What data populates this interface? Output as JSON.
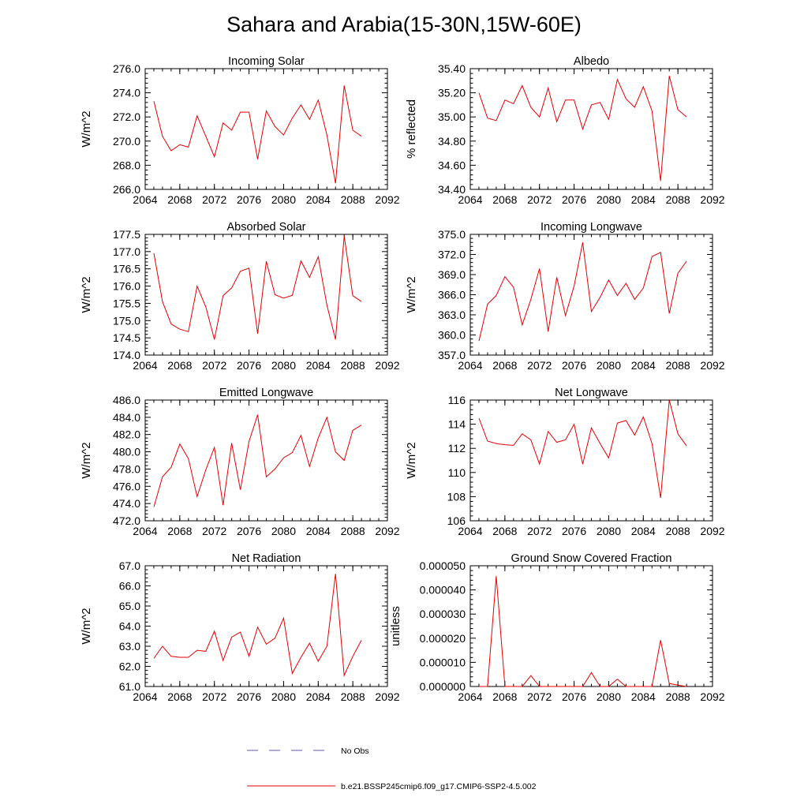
{
  "figure": {
    "title": "Sahara and Arabia(15-30N,15W-60E)"
  },
  "legend": {
    "items": [
      {
        "label": "No Obs",
        "color": "#5a5aa0",
        "style": "dashed"
      },
      {
        "label": "b.e21.BSSP245cmip6.f09_g17.CMIP6-SSP2-4.5.002",
        "color": "#e60000",
        "style": "solid"
      }
    ]
  },
  "chart_data": [
    {
      "type": "line",
      "title": "Incoming Solar",
      "ylabel": "W/m^2",
      "xlim": [
        2064,
        2092
      ],
      "ylim": [
        266,
        276
      ],
      "x_ticks": [
        2064,
        2068,
        2072,
        2076,
        2080,
        2084,
        2088,
        2092
      ],
      "x_tick_labels": [
        "2064",
        "2068",
        "2072",
        "2076",
        "2080",
        "2084",
        "2088",
        "2092"
      ],
      "y_ticks": [
        266,
        268,
        270,
        272,
        274,
        276
      ],
      "y_tick_labels": [
        "266.0",
        "268.0",
        "270.0",
        "272.0",
        "274.0",
        "276.0"
      ],
      "x": [
        2065,
        2066,
        2067,
        2068,
        2069,
        2070,
        2071,
        2072,
        2073,
        2074,
        2075,
        2076,
        2077,
        2078,
        2079,
        2080,
        2081,
        2082,
        2083,
        2084,
        2085,
        2086,
        2087,
        2088,
        2089
      ],
      "series": [
        {
          "color": "#e60000",
          "values": [
            273.3,
            270.4,
            269.2,
            269.7,
            269.5,
            272.1,
            270.4,
            268.7,
            271.5,
            270.9,
            272.4,
            272.4,
            268.5,
            272.5,
            271.2,
            270.5,
            271.9,
            273.0,
            271.8,
            273.4,
            270.5,
            266.5,
            274.6,
            270.9,
            270.4
          ]
        }
      ]
    },
    {
      "type": "line",
      "title": "Albedo",
      "ylabel": "% reflected",
      "xlim": [
        2064,
        2092
      ],
      "ylim": [
        34.4,
        35.4
      ],
      "x_ticks": [
        2064,
        2068,
        2072,
        2076,
        2080,
        2084,
        2088,
        2092
      ],
      "x_tick_labels": [
        "2064",
        "2068",
        "2072",
        "2076",
        "2080",
        "2084",
        "2088",
        "2092"
      ],
      "y_ticks": [
        34.4,
        34.6,
        34.8,
        35.0,
        35.2,
        35.4
      ],
      "y_tick_labels": [
        "34.40",
        "34.60",
        "34.80",
        "35.00",
        "35.20",
        "35.40"
      ],
      "x": [
        2065,
        2066,
        2067,
        2068,
        2069,
        2070,
        2071,
        2072,
        2073,
        2074,
        2075,
        2076,
        2077,
        2078,
        2079,
        2080,
        2081,
        2082,
        2083,
        2084,
        2085,
        2086,
        2087,
        2088,
        2089
      ],
      "series": [
        {
          "color": "#e60000",
          "values": [
            35.2,
            34.99,
            34.97,
            35.14,
            35.11,
            35.26,
            35.08,
            35.0,
            35.24,
            34.96,
            35.14,
            35.14,
            34.9,
            35.1,
            35.12,
            34.98,
            35.31,
            35.15,
            35.08,
            35.25,
            35.05,
            34.47,
            35.34,
            35.06,
            35.0
          ]
        }
      ]
    },
    {
      "type": "line",
      "title": "Absorbed Solar",
      "ylabel": "W/m^2",
      "xlim": [
        2064,
        2092
      ],
      "ylim": [
        174.0,
        177.5
      ],
      "x_ticks": [
        2064,
        2068,
        2072,
        2076,
        2080,
        2084,
        2088,
        2092
      ],
      "x_tick_labels": [
        "2064",
        "2068",
        "2072",
        "2076",
        "2080",
        "2084",
        "2088",
        "2092"
      ],
      "y_ticks": [
        174.0,
        174.5,
        175.0,
        175.5,
        176.0,
        176.5,
        177.0,
        177.5
      ],
      "y_tick_labels": [
        "174.0",
        "174.5",
        "175.0",
        "175.5",
        "176.0",
        "176.5",
        "177.0",
        "177.5"
      ],
      "x": [
        2065,
        2066,
        2067,
        2068,
        2069,
        2070,
        2071,
        2072,
        2073,
        2074,
        2075,
        2076,
        2077,
        2078,
        2079,
        2080,
        2081,
        2082,
        2083,
        2084,
        2085,
        2086,
        2087,
        2088,
        2089
      ],
      "series": [
        {
          "color": "#e60000",
          "values": [
            176.95,
            175.55,
            174.9,
            174.75,
            174.68,
            176.0,
            175.4,
            174.45,
            175.72,
            175.95,
            176.43,
            176.52,
            174.62,
            176.72,
            175.75,
            175.65,
            175.73,
            176.73,
            176.25,
            176.85,
            175.45,
            174.45,
            177.45,
            175.72,
            175.55
          ]
        }
      ]
    },
    {
      "type": "line",
      "title": "Incoming Longwave",
      "ylabel": "W/m^2",
      "xlim": [
        2064,
        2092
      ],
      "ylim": [
        357.0,
        375.0
      ],
      "x_ticks": [
        2064,
        2068,
        2072,
        2076,
        2080,
        2084,
        2088,
        2092
      ],
      "x_tick_labels": [
        "2064",
        "2068",
        "2072",
        "2076",
        "2080",
        "2084",
        "2088",
        "2092"
      ],
      "y_ticks": [
        357,
        360,
        363,
        366,
        369,
        372,
        375
      ],
      "y_tick_labels": [
        "357.0",
        "360.0",
        "363.0",
        "366.0",
        "369.0",
        "372.0",
        "375.0"
      ],
      "x": [
        2065,
        2066,
        2067,
        2068,
        2069,
        2070,
        2071,
        2072,
        2073,
        2074,
        2075,
        2076,
        2077,
        2078,
        2079,
        2080,
        2081,
        2082,
        2083,
        2084,
        2085,
        2086,
        2087,
        2088,
        2089
      ],
      "series": [
        {
          "color": "#e60000",
          "values": [
            359.1,
            364.6,
            365.9,
            368.7,
            367.1,
            361.5,
            365.3,
            369.9,
            360.5,
            368.6,
            362.9,
            367.3,
            373.8,
            363.5,
            365.6,
            368.2,
            365.9,
            367.7,
            365.3,
            367.0,
            371.7,
            372.3,
            363.2,
            369.2,
            371.0
          ]
        }
      ]
    },
    {
      "type": "line",
      "title": "Emitted Longwave",
      "ylabel": "W/m^2",
      "xlim": [
        2064,
        2092
      ],
      "ylim": [
        472.0,
        486.0
      ],
      "x_ticks": [
        2064,
        2068,
        2072,
        2076,
        2080,
        2084,
        2088,
        2092
      ],
      "x_tick_labels": [
        "2064",
        "2068",
        "2072",
        "2076",
        "2080",
        "2084",
        "2088",
        "2092"
      ],
      "y_ticks": [
        472,
        474,
        476,
        478,
        480,
        482,
        484,
        486
      ],
      "y_tick_labels": [
        "472.0",
        "474.0",
        "476.0",
        "478.0",
        "480.0",
        "482.0",
        "484.0",
        "486.0"
      ],
      "x": [
        2065,
        2066,
        2067,
        2068,
        2069,
        2070,
        2071,
        2072,
        2073,
        2074,
        2075,
        2076,
        2077,
        2078,
        2079,
        2080,
        2081,
        2082,
        2083,
        2084,
        2085,
        2086,
        2087,
        2088,
        2089
      ],
      "series": [
        {
          "color": "#e60000",
          "values": [
            473.6,
            477.1,
            478.2,
            480.9,
            479.2,
            474.8,
            477.9,
            480.5,
            473.8,
            481.0,
            475.6,
            481.2,
            484.3,
            477.1,
            478.0,
            479.3,
            479.9,
            481.9,
            478.3,
            481.6,
            484.0,
            480.0,
            479.0,
            482.5,
            483.1
          ]
        }
      ]
    },
    {
      "type": "line",
      "title": "Net Longwave",
      "ylabel": "W/m^2",
      "xlim": [
        2064,
        2092
      ],
      "ylim": [
        106,
        116
      ],
      "x_ticks": [
        2064,
        2068,
        2072,
        2076,
        2080,
        2084,
        2088,
        2092
      ],
      "x_tick_labels": [
        "2064",
        "2068",
        "2072",
        "2076",
        "2080",
        "2084",
        "2088",
        "2092"
      ],
      "y_ticks": [
        106,
        108,
        110,
        112,
        114,
        116
      ],
      "y_tick_labels": [
        "106",
        "108",
        "110",
        "112",
        "114",
        "116"
      ],
      "x": [
        2065,
        2066,
        2067,
        2068,
        2069,
        2070,
        2071,
        2072,
        2073,
        2074,
        2075,
        2076,
        2077,
        2078,
        2079,
        2080,
        2081,
        2082,
        2083,
        2084,
        2085,
        2086,
        2087,
        2088,
        2089
      ],
      "series": [
        {
          "color": "#e60000",
          "values": [
            114.5,
            112.6,
            112.4,
            112.3,
            112.25,
            113.2,
            112.7,
            110.7,
            113.4,
            112.5,
            112.7,
            114.0,
            110.7,
            113.7,
            112.4,
            111.2,
            114.1,
            114.3,
            113.1,
            114.6,
            112.4,
            107.9,
            116.0,
            113.2,
            112.2
          ]
        }
      ]
    },
    {
      "type": "line",
      "title": "Net Radiation",
      "ylabel": "W/m^2",
      "xlim": [
        2064,
        2092
      ],
      "ylim": [
        61.0,
        67.0
      ],
      "x_ticks": [
        2064,
        2068,
        2072,
        2076,
        2080,
        2084,
        2088,
        2092
      ],
      "x_tick_labels": [
        "2064",
        "2068",
        "2072",
        "2076",
        "2080",
        "2084",
        "2088",
        "2092"
      ],
      "y_ticks": [
        61,
        62,
        63,
        64,
        65,
        66,
        67
      ],
      "y_tick_labels": [
        "61.0",
        "62.0",
        "63.0",
        "64.0",
        "65.0",
        "66.0",
        "67.0"
      ],
      "x": [
        2065,
        2066,
        2067,
        2068,
        2069,
        2070,
        2071,
        2072,
        2073,
        2074,
        2075,
        2076,
        2077,
        2078,
        2079,
        2080,
        2081,
        2082,
        2083,
        2084,
        2085,
        2086,
        2087,
        2088,
        2089
      ],
      "series": [
        {
          "color": "#e60000",
          "values": [
            62.4,
            63.0,
            62.5,
            62.45,
            62.45,
            62.8,
            62.75,
            63.75,
            62.3,
            63.45,
            63.7,
            62.5,
            63.95,
            63.1,
            63.4,
            64.4,
            61.65,
            62.45,
            63.15,
            62.25,
            63.0,
            66.6,
            61.55,
            62.5,
            63.3
          ]
        }
      ]
    },
    {
      "type": "line",
      "title": "Ground Snow Covered Fraction",
      "ylabel": "unitless",
      "xlim": [
        2064,
        2092
      ],
      "ylim": [
        0,
        5e-05
      ],
      "x_ticks": [
        2064,
        2068,
        2072,
        2076,
        2080,
        2084,
        2088,
        2092
      ],
      "x_tick_labels": [
        "2064",
        "2068",
        "2072",
        "2076",
        "2080",
        "2084",
        "2088",
        "2092"
      ],
      "y_ticks": [
        0,
        1e-05,
        2e-05,
        3e-05,
        4e-05,
        5e-05
      ],
      "y_tick_labels": [
        "0.000000",
        "0.000010",
        "0.000020",
        "0.000030",
        "0.000040",
        "0.000050"
      ],
      "x": [
        2065,
        2066,
        2067,
        2068,
        2069,
        2070,
        2071,
        2072,
        2073,
        2074,
        2075,
        2076,
        2077,
        2078,
        2079,
        2080,
        2081,
        2082,
        2083,
        2084,
        2085,
        2086,
        2087,
        2088,
        2089
      ],
      "series": [
        {
          "color": "#e60000",
          "values": [
            0,
            0,
            4.57e-05,
            0,
            0,
            0,
            4.5e-06,
            0,
            0,
            0,
            0,
            0,
            0,
            5.8e-06,
            0,
            0,
            3e-06,
            0,
            0,
            0,
            0,
            1.92e-05,
            1.2e-06,
            6e-07,
            0
          ]
        }
      ]
    }
  ]
}
